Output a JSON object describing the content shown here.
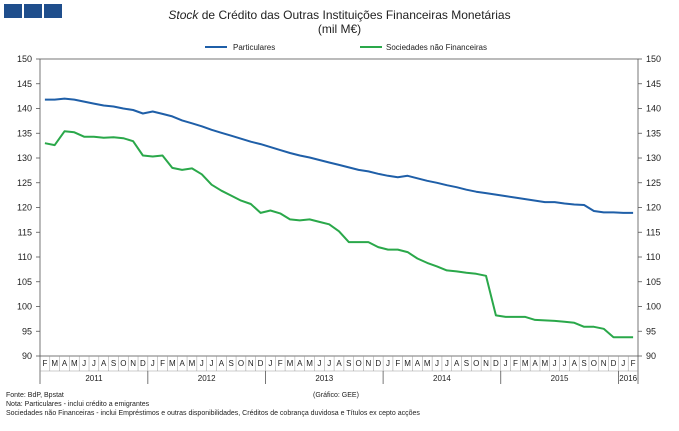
{
  "header": {
    "title_italic": "Stock",
    "title_rest": " de Crédito das Outras Instituições Financeiras Monetárias",
    "subtitle": "(mil M€)"
  },
  "chart_data": {
    "type": "line",
    "title": "Stock de Crédito das Outras Instituições Financeiras Monetárias",
    "subtitle": "(mil M€)",
    "ylim": [
      90,
      150
    ],
    "yticks": [
      90,
      95,
      100,
      105,
      110,
      115,
      120,
      125,
      130,
      135,
      140,
      145,
      150
    ],
    "legend_position": "top",
    "grid": false,
    "x": [
      "2011-02",
      "2011-03",
      "2011-04",
      "2011-05",
      "2011-06",
      "2011-07",
      "2011-08",
      "2011-09",
      "2011-10",
      "2011-11",
      "2011-12",
      "2012-01",
      "2012-02",
      "2012-03",
      "2012-04",
      "2012-05",
      "2012-06",
      "2012-07",
      "2012-08",
      "2012-09",
      "2012-10",
      "2012-11",
      "2012-12",
      "2013-01",
      "2013-02",
      "2013-03",
      "2013-04",
      "2013-05",
      "2013-06",
      "2013-07",
      "2013-08",
      "2013-09",
      "2013-10",
      "2013-11",
      "2013-12",
      "2014-01",
      "2014-02",
      "2014-03",
      "2014-04",
      "2014-05",
      "2014-06",
      "2014-07",
      "2014-08",
      "2014-09",
      "2014-10",
      "2014-11",
      "2014-12",
      "2015-01",
      "2015-02",
      "2015-03",
      "2015-04",
      "2015-05",
      "2015-06",
      "2015-07",
      "2015-08",
      "2015-09",
      "2015-10",
      "2015-11",
      "2015-12",
      "2016-01",
      "2016-02"
    ],
    "month_labels": [
      "F",
      "M",
      "A",
      "M",
      "J",
      "J",
      "A",
      "S",
      "O",
      "N",
      "D",
      "J",
      "F",
      "M",
      "A",
      "M",
      "J",
      "J",
      "A",
      "S",
      "O",
      "N",
      "D",
      "J",
      "F",
      "M",
      "A",
      "M",
      "J",
      "J",
      "A",
      "S",
      "O",
      "N",
      "D",
      "J",
      "F",
      "M",
      "A",
      "M",
      "J",
      "J",
      "A",
      "S",
      "O",
      "N",
      "D",
      "J",
      "F",
      "M",
      "A",
      "M",
      "J",
      "J",
      "A",
      "S",
      "O",
      "N",
      "D",
      "J",
      "F"
    ],
    "years": [
      "2011",
      "2012",
      "2013",
      "2014",
      "2015",
      "2016"
    ],
    "series": [
      {
        "name": "Particulares",
        "color": "#1f5fa8",
        "values": [
          141.8,
          141.8,
          142.0,
          141.8,
          141.4,
          141.0,
          140.6,
          140.4,
          140.0,
          139.7,
          139.0,
          139.4,
          138.9,
          138.4,
          137.6,
          137.0,
          136.4,
          135.7,
          135.1,
          134.5,
          133.9,
          133.3,
          132.8,
          132.2,
          131.6,
          131.0,
          130.5,
          130.1,
          129.6,
          129.1,
          128.6,
          128.1,
          127.6,
          127.3,
          126.8,
          126.4,
          126.1,
          126.4,
          125.9,
          125.4,
          125.0,
          124.5,
          124.1,
          123.6,
          123.2,
          122.9,
          122.6,
          122.3,
          122.0,
          121.7,
          121.4,
          121.1,
          121.1,
          120.8,
          120.6,
          120.5,
          119.3,
          119.0,
          119.0,
          118.9,
          118.9
        ]
      },
      {
        "name": "Sociedades não Financeiras",
        "color": "#2aa84a",
        "values": [
          133.0,
          132.6,
          135.4,
          135.2,
          134.3,
          134.3,
          134.1,
          134.2,
          134.0,
          133.4,
          130.5,
          130.3,
          130.5,
          128.0,
          127.6,
          127.9,
          126.7,
          124.6,
          123.4,
          122.4,
          121.4,
          120.7,
          118.9,
          119.4,
          118.8,
          117.6,
          117.4,
          117.6,
          117.1,
          116.6,
          115.2,
          113.0,
          113.0,
          113.0,
          112.0,
          111.5,
          111.5,
          111.0,
          109.7,
          108.8,
          108.1,
          107.3,
          107.1,
          106.8,
          106.6,
          106.2,
          98.2,
          97.9,
          97.9,
          97.9,
          97.3,
          97.2,
          97.1,
          96.9,
          96.7,
          95.9,
          95.9,
          95.5,
          93.8,
          93.8,
          93.8
        ]
      }
    ]
  },
  "footer": {
    "notes": [
      "Fonte: BdP, Bpstat",
      "Nota: Particulares - inclui crédito a emigrantes",
      "Sociedades não Financeiras - inclui Empréstimos e outras disponibilidades, Créditos de cobrança duvidosa e Títulos ex cepto acções"
    ],
    "credit": "(Gráfico: GEE)"
  }
}
